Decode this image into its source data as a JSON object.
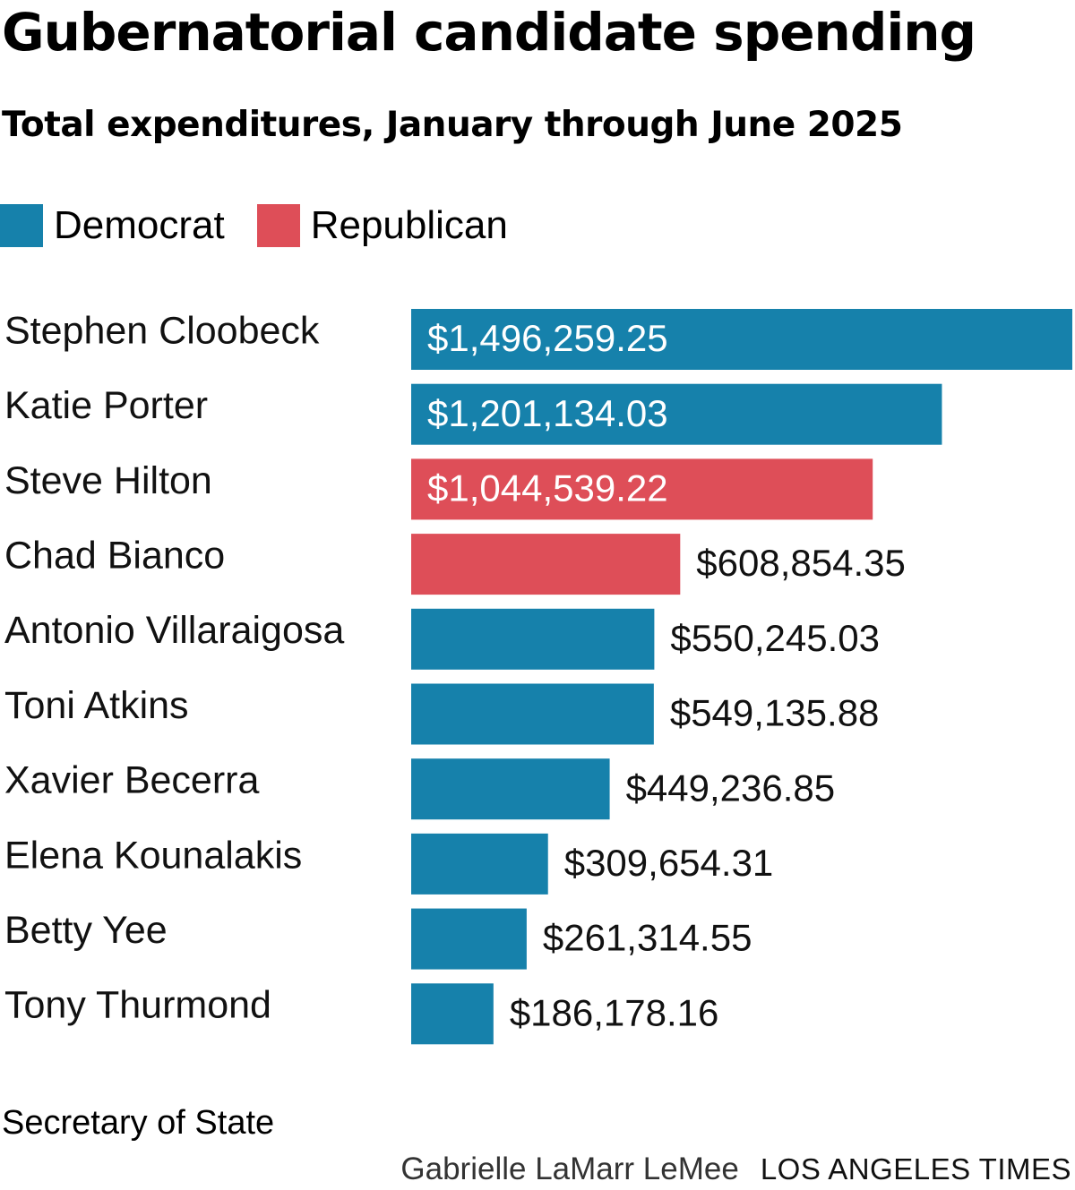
{
  "chart_data": {
    "type": "bar",
    "orientation": "horizontal",
    "title": "Gubernatorial candidate spending",
    "subtitle": "Total expenditures, January through June 2025",
    "legend": [
      {
        "label": "Democrat",
        "color": "#1681ab"
      },
      {
        "label": "Republican",
        "color": "#de4e58"
      }
    ],
    "categories": [
      "Stephen Cloobeck",
      "Katie Porter",
      "Steve Hilton",
      "Chad Bianco",
      "Antonio Villaraigosa",
      "Toni Atkins",
      "Xavier Becerra",
      "Elena Kounalakis",
      "Betty Yee",
      "Tony Thurmond"
    ],
    "values": [
      1496259.25,
      1201134.03,
      1044539.22,
      608854.35,
      550245.03,
      549135.88,
      449236.85,
      309654.31,
      261314.55,
      186178.16
    ],
    "value_labels": [
      "$1,496,259.25",
      "$1,201,134.03",
      "$1,044,539.22",
      "$608,854.35",
      "$550,245.03",
      "$549,135.88",
      "$449,236.85",
      "$309,654.31",
      "$261,314.55",
      "$186,178.16"
    ],
    "party": [
      "Democrat",
      "Democrat",
      "Republican",
      "Republican",
      "Democrat",
      "Democrat",
      "Democrat",
      "Democrat",
      "Democrat",
      "Democrat"
    ],
    "xlim": [
      0,
      1496259.25
    ],
    "grid": false,
    "xlabel": "",
    "ylabel": ""
  },
  "footer": {
    "source": "Secretary of State",
    "author": "Gabrielle LaMarr LeMee",
    "organization": "LOS ANGELES TIMES"
  }
}
